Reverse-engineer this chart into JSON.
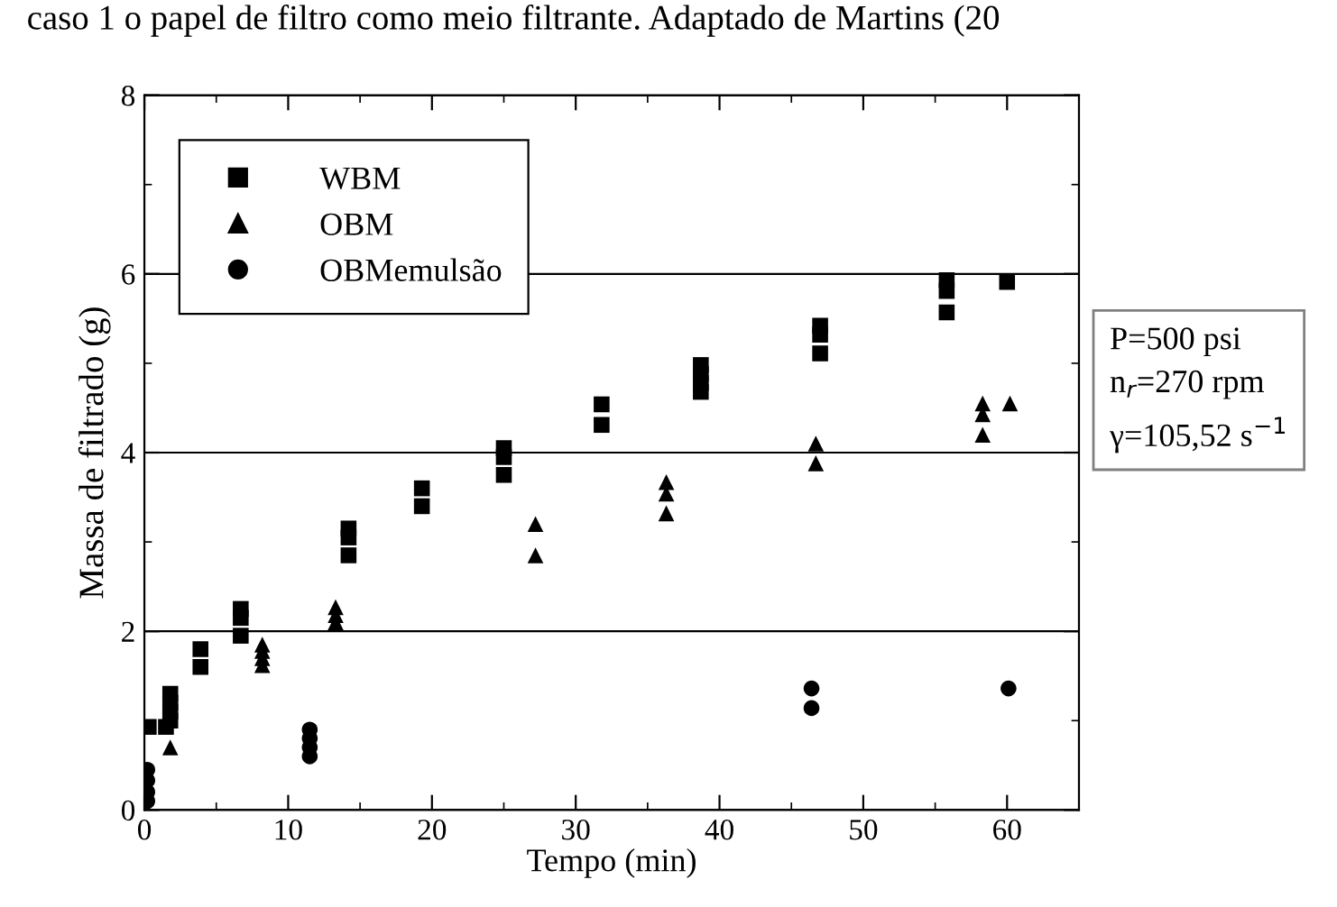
{
  "chart_data": {
    "type": "scatter",
    "xlabel": "Tempo (min)",
    "ylabel": "Massa de filtrado (g)",
    "xlim": [
      0,
      65
    ],
    "ylim": [
      0,
      8
    ],
    "xticks": [
      0,
      {
        "value": 5,
        "label": null
      },
      10,
      {
        "value": 15,
        "label": null
      },
      20,
      {
        "value": 25,
        "label": null
      },
      30,
      {
        "value": 35,
        "label": null
      },
      40,
      {
        "value": 45,
        "label": null
      },
      50,
      {
        "value": 55,
        "label": null
      },
      60,
      {
        "value": 65,
        "label": null
      }
    ],
    "yticks": [
      0,
      {
        "value": 1,
        "label": null
      },
      2,
      {
        "value": 3,
        "label": null
      },
      4,
      {
        "value": 5,
        "label": null
      },
      6,
      {
        "value": 7,
        "label": null
      },
      8
    ],
    "grid": "y",
    "legend": "top left",
    "series": [
      {
        "name": "WBM",
        "color": "#000000",
        "marker": "square",
        "x": [
          0.3,
          1.5,
          1.8,
          1.8,
          1.8,
          1.8,
          3.9,
          3.9,
          6.7,
          6.7,
          6.7,
          14.2,
          14.2,
          14.2,
          19.3,
          19.3,
          25,
          25,
          25,
          31.8,
          31.8,
          38.7,
          38.7,
          38.7,
          38.7,
          47,
          47,
          47,
          55.8,
          55.8,
          55.8,
          60
        ],
        "values": [
          0.93,
          0.93,
          1.0,
          1.1,
          1.2,
          1.3,
          1.8,
          1.6,
          2.25,
          2.15,
          1.95,
          3.15,
          3.05,
          2.85,
          3.6,
          3.4,
          4.05,
          3.95,
          3.75,
          4.54,
          4.31,
          4.98,
          4.88,
          4.78,
          4.68,
          5.42,
          5.32,
          5.11,
          5.93,
          5.81,
          5.57,
          5.91
        ]
      },
      {
        "name": "OBM",
        "color": "#000000",
        "marker": "triangle",
        "x": [
          1.8,
          8.2,
          8.2,
          8.2,
          8.2,
          13.3,
          13.3,
          13.3,
          27.2,
          27.2,
          36.3,
          36.3,
          36.3,
          46.7,
          46.7,
          58.3,
          58.3,
          58.3,
          60.2
        ],
        "values": [
          0.7,
          1.85,
          1.78,
          1.7,
          1.62,
          2.27,
          2.18,
          2.1,
          3.2,
          2.85,
          3.67,
          3.54,
          3.32,
          4.1,
          3.88,
          4.55,
          4.43,
          4.2,
          4.55
        ]
      },
      {
        "name": "OBMemulsão",
        "color": "#000000",
        "marker": "circle",
        "x": [
          0.2,
          0.2,
          0.2,
          0.2,
          11.5,
          11.5,
          11.5,
          11.5,
          46.4,
          46.4,
          60.1
        ],
        "values": [
          0.45,
          0.33,
          0.2,
          0.1,
          0.9,
          0.8,
          0.7,
          0.6,
          1.36,
          1.14,
          1.36
        ]
      }
    ],
    "annotations": [
      "caso 1 o papel de filtro como meio filtrante. Adaptado de Martins (20",
      "P=500 psi\nn$_{r}$=270 rpm\nγ=105,52 s$^{−1}$"
    ]
  }
}
